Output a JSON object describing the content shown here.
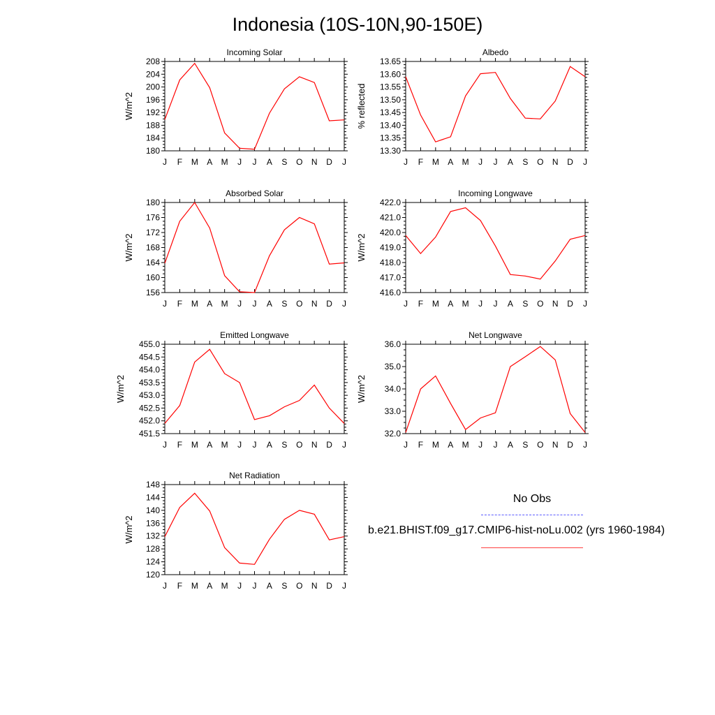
{
  "title": "Indonesia (10S-10N,90-150E)",
  "colors": {
    "series": "#ff0000",
    "obs": "#5a5aff",
    "axis": "#000000"
  },
  "legend": {
    "obs_label": "No Obs",
    "model_label": "b.e21.BHIST.f09_g17.CMIP6-hist-noLu.002 (yrs 1960-1984)"
  },
  "chart_data": [
    {
      "type": "line",
      "title": "Incoming Solar",
      "ylabel": "W/m^2",
      "categories": [
        "J",
        "F",
        "M",
        "A",
        "M",
        "J",
        "J",
        "A",
        "S",
        "O",
        "N",
        "D",
        "J"
      ],
      "ylim": [
        180,
        208
      ],
      "yticks": [
        "180",
        "184",
        "188",
        "192",
        "196",
        "200",
        "204",
        "208"
      ],
      "series": [
        {
          "values": [
            189.8,
            202.2,
            207.4,
            199.8,
            185.6,
            180.8,
            180.5,
            191.8,
            199.4,
            203.2,
            201.4,
            189.4,
            189.7
          ]
        }
      ]
    },
    {
      "type": "line",
      "title": "Albedo",
      "ylabel": "% reflected",
      "categories": [
        "J",
        "F",
        "M",
        "A",
        "M",
        "J",
        "J",
        "A",
        "S",
        "O",
        "N",
        "D",
        "J"
      ],
      "ylim": [
        13.3,
        13.65
      ],
      "yticks": [
        "13.30",
        "13.35",
        "13.40",
        "13.45",
        "13.50",
        "13.55",
        "13.60",
        "13.65"
      ],
      "series": [
        {
          "values": [
            13.59,
            13.44,
            13.335,
            13.355,
            13.515,
            13.602,
            13.607,
            13.505,
            13.428,
            13.425,
            13.495,
            13.63,
            13.59
          ]
        }
      ]
    },
    {
      "type": "line",
      "title": "Absorbed Solar",
      "ylabel": "W/m^2",
      "categories": [
        "J",
        "F",
        "M",
        "A",
        "M",
        "J",
        "J",
        "A",
        "S",
        "O",
        "N",
        "D",
        "J"
      ],
      "ylim": [
        156,
        180
      ],
      "yticks": [
        "156",
        "160",
        "164",
        "168",
        "172",
        "176",
        "180"
      ],
      "series": [
        {
          "values": [
            163.8,
            175.0,
            180.0,
            173.2,
            160.5,
            156.2,
            156.0,
            165.8,
            172.7,
            176.0,
            174.3,
            163.6,
            163.9
          ]
        }
      ]
    },
    {
      "type": "line",
      "title": "Incoming Longwave",
      "ylabel": "W/m^2",
      "categories": [
        "J",
        "F",
        "M",
        "A",
        "M",
        "J",
        "J",
        "A",
        "S",
        "O",
        "N",
        "D",
        "J"
      ],
      "ylim": [
        416,
        422
      ],
      "yticks": [
        "416.0",
        "417.0",
        "418.0",
        "419.0",
        "420.0",
        "421.0",
        "422.0"
      ],
      "series": [
        {
          "values": [
            419.8,
            418.6,
            419.7,
            421.4,
            421.65,
            420.8,
            419.1,
            417.2,
            417.1,
            416.9,
            418.1,
            419.55,
            419.8
          ]
        }
      ]
    },
    {
      "type": "line",
      "title": "Emitted Longwave",
      "ylabel": "W/m^2",
      "categories": [
        "J",
        "F",
        "M",
        "A",
        "M",
        "J",
        "J",
        "A",
        "S",
        "O",
        "N",
        "D",
        "J"
      ],
      "ylim": [
        451.5,
        455.0
      ],
      "yticks": [
        "451.5",
        "452.0",
        "452.5",
        "453.0",
        "453.5",
        "454.0",
        "454.5",
        "455.0"
      ],
      "series": [
        {
          "values": [
            451.9,
            452.6,
            454.3,
            454.8,
            453.85,
            453.5,
            452.05,
            452.2,
            452.55,
            452.8,
            453.4,
            452.5,
            451.9
          ]
        }
      ]
    },
    {
      "type": "line",
      "title": "Net Longwave",
      "ylabel": "W/m^2",
      "categories": [
        "J",
        "F",
        "M",
        "A",
        "M",
        "J",
        "J",
        "A",
        "S",
        "O",
        "N",
        "D",
        "J"
      ],
      "ylim": [
        32.0,
        36.0
      ],
      "yticks": [
        "32.0",
        "33.0",
        "34.0",
        "35.0",
        "36.0"
      ],
      "series": [
        {
          "values": [
            32.05,
            34.0,
            34.58,
            33.35,
            32.18,
            32.7,
            32.93,
            35.0,
            35.44,
            35.9,
            35.3,
            32.9,
            32.05
          ]
        }
      ]
    },
    {
      "type": "line",
      "title": "Net Radiation",
      "ylabel": "W/m^2",
      "categories": [
        "J",
        "F",
        "M",
        "A",
        "M",
        "J",
        "J",
        "A",
        "S",
        "O",
        "N",
        "D",
        "J"
      ],
      "ylim": [
        120,
        148
      ],
      "yticks": [
        "120",
        "124",
        "128",
        "132",
        "136",
        "140",
        "144",
        "148"
      ],
      "series": [
        {
          "values": [
            131.8,
            140.9,
            145.3,
            139.8,
            128.4,
            123.6,
            123.2,
            131.0,
            137.2,
            140.0,
            138.8,
            130.8,
            131.8
          ]
        }
      ]
    }
  ]
}
